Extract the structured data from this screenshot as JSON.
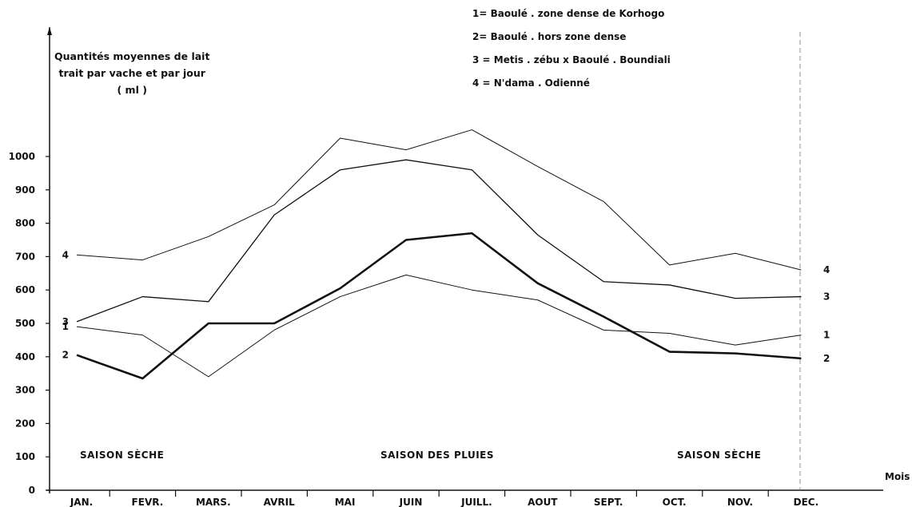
{
  "chart_data": {
    "type": "line",
    "title": "",
    "ylabel_lines": [
      "Quantités moyennes de lait",
      "trait par vache et par jour",
      "( ml )"
    ],
    "xlabel": "Mois",
    "categories": [
      "JAN.",
      "FEVR.",
      "MARS.",
      "AVRIL",
      "MAI",
      "JUIN",
      "JUILL.",
      "AOUT",
      "SEPT.",
      "OCT.",
      "NOV.",
      "DEC."
    ],
    "yticks": [
      0,
      100,
      200,
      300,
      400,
      500,
      600,
      700,
      800,
      900,
      1000
    ],
    "ylim": [
      0,
      1300
    ],
    "legend": [
      "1= Baoulé . zone dense de Korhogo",
      "2= Baoulé . hors zone dense",
      "3 = Metis . zébu x Baoulé . Boundiali",
      "4 = N'dama . Odienné"
    ],
    "series": [
      {
        "name": "1",
        "values": [
          490,
          465,
          340,
          480,
          580,
          645,
          600,
          570,
          480,
          470,
          435,
          465
        ]
      },
      {
        "name": "2",
        "values": [
          405,
          335,
          500,
          500,
          605,
          750,
          770,
          620,
          520,
          415,
          410,
          395
        ]
      },
      {
        "name": "3",
        "values": [
          505,
          580,
          565,
          825,
          960,
          990,
          960,
          765,
          625,
          615,
          575,
          580
        ]
      },
      {
        "name": "4",
        "values": [
          705,
          690,
          760,
          855,
          1055,
          1020,
          1080,
          970,
          865,
          675,
          710,
          660
        ]
      }
    ],
    "annotations": [
      "SAISON SÈCHE",
      "SAISON DES PLUIES",
      "SAISON SÈCHE"
    ],
    "grid": false,
    "legend_position": "top-right"
  }
}
